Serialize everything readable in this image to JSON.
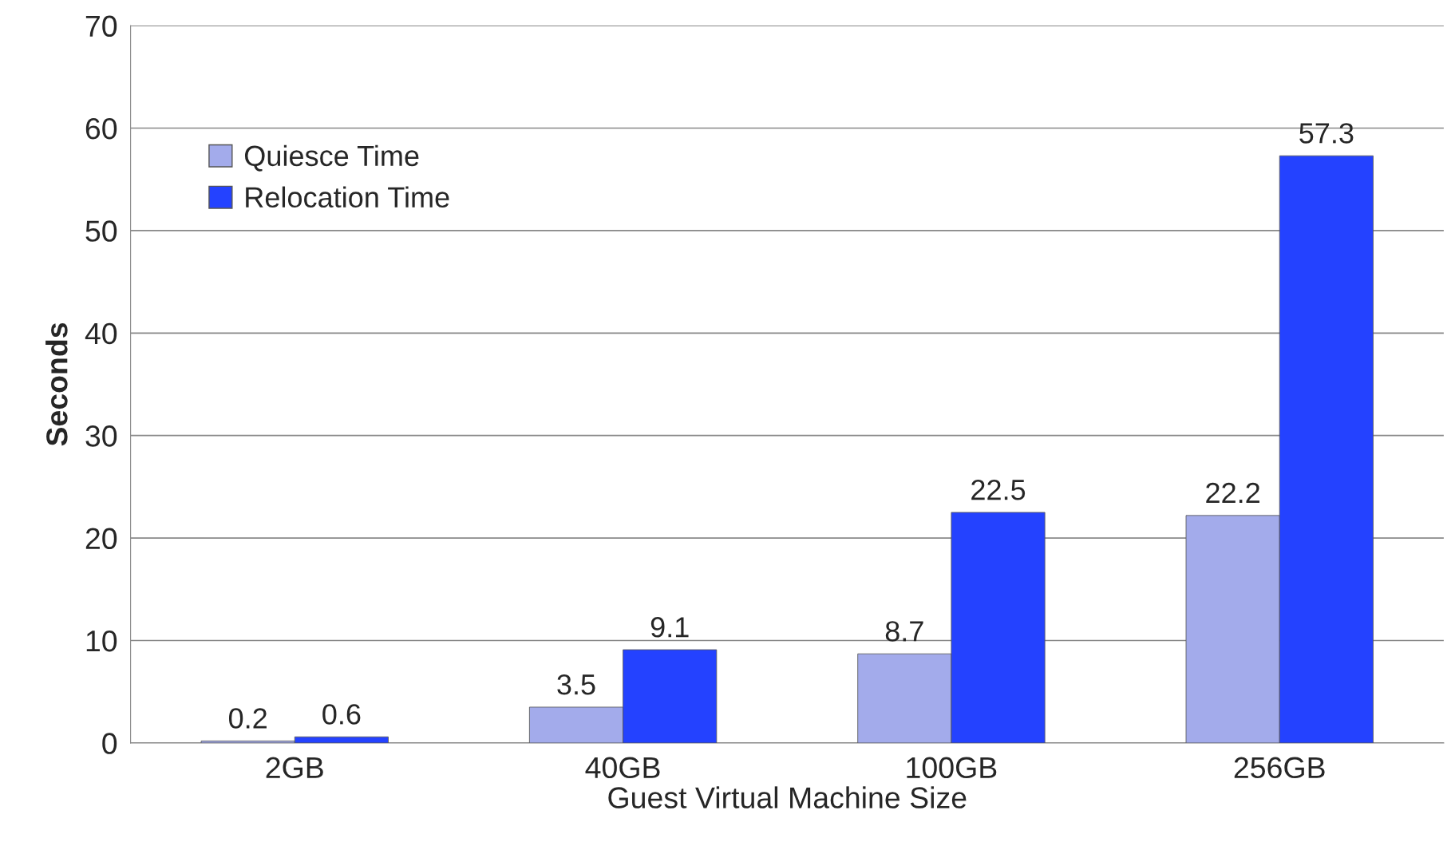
{
  "chart_data": {
    "type": "bar",
    "xlabel": "Guest Virtual Machine Size",
    "ylabel": "Seconds",
    "categories": [
      "2GB",
      "40GB",
      "100GB",
      "256GB"
    ],
    "series": [
      {
        "name": "Quiesce Time",
        "color": "#a3abeb",
        "values": [
          0.2,
          3.5,
          8.7,
          22.2
        ]
      },
      {
        "name": "Relocation Time",
        "color": "#2442ff",
        "values": [
          0.6,
          9.1,
          22.5,
          57.3
        ]
      }
    ],
    "ylim": [
      0,
      70
    ],
    "yticks": [
      0,
      10,
      20,
      30,
      40,
      50,
      60,
      70
    ],
    "grid": "y",
    "legend": "top left",
    "data_labels": true
  }
}
